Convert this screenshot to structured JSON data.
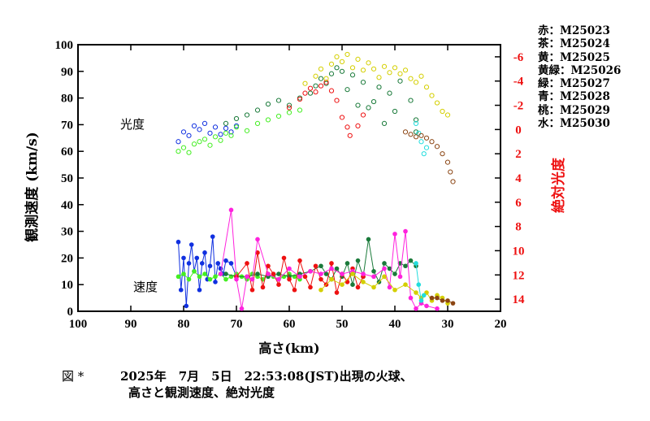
{
  "chart_data": {
    "type": "scatter",
    "xlabel": "高さ(km)",
    "ylabel": "観測速度 (km/s)",
    "y2label": "絶対光度",
    "xlim": [
      100,
      20
    ],
    "ylim": [
      0,
      100
    ],
    "y2lim": [
      15,
      -7
    ],
    "x_ticks": [
      "100",
      "90",
      "80",
      "70",
      "60",
      "50",
      "40",
      "30",
      "20"
    ],
    "y_ticks": [
      "0",
      "10",
      "20",
      "30",
      "40",
      "50",
      "60",
      "70",
      "80",
      "90",
      "100"
    ],
    "y2_ticks": [
      "-6",
      "-4",
      "-2",
      "0",
      "2",
      "4",
      "6",
      "8",
      "10",
      "12",
      "14"
    ],
    "annotations": {
      "brightness": "光度",
      "speed": "速度"
    },
    "legend": [
      {
        "label": "赤：M25023",
        "color": "#ee1111"
      },
      {
        "label": "茶：M25024",
        "color": "#8b4513"
      },
      {
        "label": "黄：M25025",
        "color": "#d4cf00"
      },
      {
        "label": "黄緑：M25026",
        "color": "#44ee22"
      },
      {
        "label": "緑：M25027",
        "color": "#1a7a3a"
      },
      {
        "label": "青：M25028",
        "color": "#1030e0"
      },
      {
        "label": "桃：M25029",
        "color": "#ff22dd"
      },
      {
        "label": "水：M25030",
        "color": "#22dddd"
      }
    ],
    "series": [
      {
        "name": "M25028",
        "color": "#1030e0",
        "brightness": [
          [
            81,
            1.0
          ],
          [
            80,
            0.2
          ],
          [
            79,
            0.5
          ],
          [
            78,
            -0.3
          ],
          [
            77,
            0.0
          ],
          [
            76,
            -0.5
          ],
          [
            75,
            0.3
          ],
          [
            74,
            -0.2
          ],
          [
            73,
            0.4
          ],
          [
            72,
            -0.1
          ],
          [
            71,
            0.2
          ],
          [
            70,
            -0.3
          ]
        ],
        "speed": [
          [
            81,
            26
          ],
          [
            80.5,
            8
          ],
          [
            80,
            20
          ],
          [
            79.5,
            2
          ],
          [
            79,
            18
          ],
          [
            78.5,
            25
          ],
          [
            78,
            15
          ],
          [
            77.5,
            20
          ],
          [
            77,
            8
          ],
          [
            76.5,
            18
          ],
          [
            76,
            22
          ],
          [
            75.5,
            12
          ],
          [
            75,
            17
          ],
          [
            74.5,
            28
          ],
          [
            74,
            11
          ],
          [
            73.5,
            18
          ],
          [
            73,
            16
          ],
          [
            72.5,
            14
          ],
          [
            72,
            19
          ],
          [
            71,
            18
          ],
          [
            70,
            13
          ]
        ]
      },
      {
        "name": "M25026",
        "color": "#44ee22",
        "brightness": [
          [
            81,
            1.8
          ],
          [
            80,
            1.5
          ],
          [
            79,
            1.9
          ],
          [
            78,
            1.2
          ],
          [
            77,
            1.0
          ],
          [
            76,
            0.8
          ],
          [
            75,
            1.3
          ],
          [
            74,
            0.6
          ],
          [
            73,
            0.9
          ],
          [
            72,
            0.3
          ],
          [
            71,
            0.5
          ],
          [
            70,
            -0.2
          ],
          [
            68,
            0.1
          ],
          [
            66,
            -0.5
          ],
          [
            64,
            -0.8
          ],
          [
            62,
            -1.1
          ],
          [
            60,
            -1.4
          ],
          [
            58,
            -1.6
          ]
        ],
        "speed": [
          [
            81,
            13
          ],
          [
            80,
            14
          ],
          [
            79,
            12
          ],
          [
            78,
            15
          ],
          [
            77,
            13
          ],
          [
            76,
            14
          ],
          [
            75,
            12
          ],
          [
            74,
            13
          ],
          [
            73,
            14
          ],
          [
            72,
            12
          ],
          [
            71,
            13
          ],
          [
            70,
            14
          ],
          [
            69,
            13
          ],
          [
            68,
            12
          ],
          [
            67,
            14
          ],
          [
            66,
            13
          ],
          [
            65,
            12
          ],
          [
            64,
            14
          ],
          [
            63,
            13
          ],
          [
            62,
            12
          ],
          [
            61,
            13
          ],
          [
            60,
            14
          ],
          [
            59,
            13
          ],
          [
            58,
            12
          ]
        ]
      },
      {
        "name": "M25027",
        "color": "#1a7a3a",
        "brightness": [
          [
            72,
            -0.5
          ],
          [
            70,
            -0.9
          ],
          [
            68,
            -1.2
          ],
          [
            66,
            -1.6
          ],
          [
            64,
            -2.1
          ],
          [
            62,
            -2.4
          ],
          [
            60,
            -2.0
          ],
          [
            58,
            -2.6
          ],
          [
            56,
            -3.0
          ],
          [
            55,
            -3.6
          ],
          [
            54,
            -4.2
          ],
          [
            53,
            -3.8
          ],
          [
            52,
            -4.6
          ],
          [
            51,
            -5.1
          ],
          [
            50,
            -4.8
          ],
          [
            49,
            -3.3
          ],
          [
            48,
            -4.5
          ],
          [
            47,
            -2.0
          ],
          [
            46,
            -3.9
          ],
          [
            45,
            -1.8
          ],
          [
            44,
            -2.3
          ],
          [
            43,
            -3.5
          ],
          [
            42,
            -0.5
          ],
          [
            41,
            -3.0
          ],
          [
            40,
            -1.5
          ],
          [
            39,
            -4.0
          ],
          [
            37,
            -2.4
          ],
          [
            36,
            -0.8
          ],
          [
            36,
            0.2
          ]
        ],
        "speed": [
          [
            72,
            14
          ],
          [
            70,
            13
          ],
          [
            68,
            13
          ],
          [
            66,
            14
          ],
          [
            64,
            13
          ],
          [
            62,
            14
          ],
          [
            60,
            13
          ],
          [
            58,
            14
          ],
          [
            56,
            15
          ],
          [
            54,
            17
          ],
          [
            53,
            14
          ],
          [
            52,
            12
          ],
          [
            51,
            16
          ],
          [
            50,
            13
          ],
          [
            49,
            18
          ],
          [
            48,
            10
          ],
          [
            47,
            19
          ],
          [
            46,
            13
          ],
          [
            45,
            27
          ],
          [
            44,
            15
          ],
          [
            43,
            11
          ],
          [
            42,
            18
          ],
          [
            41,
            16
          ],
          [
            40,
            14
          ],
          [
            39,
            18
          ],
          [
            38,
            17
          ],
          [
            37,
            19
          ],
          [
            36,
            17
          ]
        ]
      },
      {
        "name": "M25023",
        "color": "#ee1111",
        "brightness": [
          [
            60,
            -1.8
          ],
          [
            58,
            -2.5
          ],
          [
            57,
            -3.0
          ],
          [
            56,
            -3.4
          ],
          [
            55,
            -3.1
          ],
          [
            54,
            -3.6
          ],
          [
            53,
            -3.9
          ],
          [
            52,
            -3.2
          ],
          [
            51,
            -2.4
          ],
          [
            50,
            -1.0
          ],
          [
            49,
            -0.2
          ],
          [
            48.5,
            0.5
          ],
          [
            47,
            -0.3
          ],
          [
            46,
            -1.2
          ]
        ],
        "speed": [
          [
            70,
            13
          ],
          [
            68,
            18
          ],
          [
            67,
            8
          ],
          [
            66,
            22
          ],
          [
            65,
            9
          ],
          [
            64,
            17
          ],
          [
            63,
            14
          ],
          [
            62,
            10
          ],
          [
            61,
            20
          ],
          [
            60,
            12
          ],
          [
            59,
            8
          ],
          [
            58,
            19
          ],
          [
            57,
            13
          ],
          [
            56,
            9
          ],
          [
            55,
            17
          ],
          [
            54,
            12
          ],
          [
            53,
            10
          ],
          [
            52,
            18
          ],
          [
            51,
            7
          ],
          [
            50,
            14
          ],
          [
            49,
            11
          ],
          [
            48,
            16
          ],
          [
            47,
            9
          ],
          [
            46,
            13
          ]
        ]
      },
      {
        "name": "M25029",
        "color": "#ff22dd",
        "brightness": [],
        "speed": [
          [
            73,
            14
          ],
          [
            71,
            38
          ],
          [
            70,
            12
          ],
          [
            69,
            1
          ],
          [
            68,
            13
          ],
          [
            67,
            12
          ],
          [
            66,
            27
          ],
          [
            64,
            14
          ],
          [
            62,
            12
          ],
          [
            60,
            16
          ],
          [
            58,
            13
          ],
          [
            56,
            15
          ],
          [
            54,
            14
          ],
          [
            52,
            16
          ],
          [
            50,
            14
          ],
          [
            48,
            15
          ],
          [
            46,
            14
          ],
          [
            44,
            13
          ],
          [
            42,
            16
          ],
          [
            41,
            9
          ],
          [
            40,
            29
          ],
          [
            39,
            13
          ],
          [
            38,
            30
          ],
          [
            37,
            5
          ],
          [
            36,
            1
          ],
          [
            35,
            3
          ],
          [
            34,
            2
          ],
          [
            32,
            1
          ]
        ]
      },
      {
        "name": "M25025",
        "color": "#d4cf00",
        "brightness": [
          [
            57,
            -3.8
          ],
          [
            55,
            -4.4
          ],
          [
            54,
            -5.0
          ],
          [
            53,
            -4.2
          ],
          [
            52,
            -5.4
          ],
          [
            51,
            -6.0
          ],
          [
            50,
            -5.6
          ],
          [
            49,
            -6.2
          ],
          [
            48,
            -5.1
          ],
          [
            47,
            -5.8
          ],
          [
            46,
            -4.9
          ],
          [
            45,
            -5.5
          ],
          [
            44,
            -5.0
          ],
          [
            43,
            -4.3
          ],
          [
            42,
            -5.2
          ],
          [
            41,
            -4.7
          ],
          [
            40,
            -5.1
          ],
          [
            39,
            -4.6
          ],
          [
            38,
            -4.9
          ],
          [
            37,
            -4.2
          ],
          [
            36,
            -3.9
          ],
          [
            35,
            -4.4
          ],
          [
            34,
            -3.5
          ],
          [
            33,
            -2.8
          ],
          [
            32,
            -2.2
          ],
          [
            31,
            -1.5
          ],
          [
            30,
            -1.2
          ]
        ],
        "speed": [
          [
            54,
            8
          ],
          [
            52,
            12
          ],
          [
            50,
            10
          ],
          [
            48,
            14
          ],
          [
            46,
            11
          ],
          [
            44,
            9
          ],
          [
            42,
            13
          ],
          [
            40,
            8
          ],
          [
            38,
            10
          ],
          [
            36,
            7
          ],
          [
            35,
            5
          ],
          [
            34,
            7
          ],
          [
            33,
            4
          ],
          [
            32,
            6
          ],
          [
            31,
            5
          ],
          [
            30,
            3
          ]
        ]
      },
      {
        "name": "M25030",
        "color": "#22dddd",
        "brightness": [
          [
            36,
            -0.5
          ],
          [
            35.5,
            0.3
          ],
          [
            35,
            1.0
          ],
          [
            34.5,
            2.0
          ],
          [
            34,
            1.5
          ]
        ],
        "speed": [
          [
            36,
            18
          ],
          [
            35.5,
            10
          ],
          [
            35,
            4
          ],
          [
            34.5,
            6
          ]
        ]
      },
      {
        "name": "M25024",
        "color": "#8b4513",
        "brightness": [
          [
            38,
            0.2
          ],
          [
            37,
            0.4
          ],
          [
            36,
            0.6
          ],
          [
            35,
            0.5
          ],
          [
            34,
            0.7
          ],
          [
            33,
            1.0
          ],
          [
            32,
            1.4
          ],
          [
            31,
            2.0
          ],
          [
            30,
            2.7
          ],
          [
            29.5,
            3.5
          ],
          [
            29,
            4.3
          ]
        ],
        "speed": [
          [
            33,
            5
          ],
          [
            32,
            5
          ],
          [
            31,
            4
          ],
          [
            30,
            4
          ],
          [
            29,
            3
          ]
        ]
      }
    ]
  },
  "caption": {
    "line1_label": "図 *",
    "line1_date": "2025年　7月　5日　22:53:08(JST)出現の火球、",
    "line2": "高さと観測速度、絶対光度"
  }
}
